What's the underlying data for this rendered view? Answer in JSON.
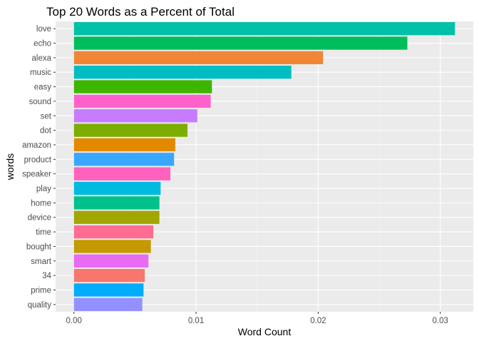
{
  "chart_data": {
    "type": "bar",
    "orientation": "horizontal",
    "title": "Top 20 Words as a Percent of Total",
    "xlabel": "Word Count",
    "ylabel": "words",
    "xlim": [
      -0.0015,
      0.0327
    ],
    "xticks": [
      0.0,
      0.01,
      0.02,
      0.03
    ],
    "xtick_labels": [
      "0.00",
      "0.01",
      "0.02",
      "0.03"
    ],
    "grid": true,
    "legend": "none",
    "categories": [
      "love",
      "echo",
      "alexa",
      "music",
      "easy",
      "sound",
      "set",
      "dot",
      "amazon",
      "product",
      "speaker",
      "play",
      "home",
      "device",
      "time",
      "bought",
      "smart",
      "34",
      "prime",
      "quality"
    ],
    "values": [
      0.0312,
      0.0273,
      0.0204,
      0.0178,
      0.0113,
      0.0112,
      0.0101,
      0.0093,
      0.0083,
      0.0082,
      0.0079,
      0.0071,
      0.007,
      0.007,
      0.0065,
      0.0063,
      0.0061,
      0.0058,
      0.0057,
      0.0056
    ],
    "colors": [
      "#00C1A7",
      "#00BD5C",
      "#F08636",
      "#00BDC4",
      "#3EB500",
      "#FF61CC",
      "#C77CFF",
      "#7CAE00",
      "#E38900",
      "#39A7FF",
      "#FF62BC",
      "#00BAE0",
      "#00C08B",
      "#A3A500",
      "#FF6C91",
      "#C49A00",
      "#E76BF3",
      "#F8766D",
      "#00ADFA",
      "#9590FF"
    ]
  }
}
